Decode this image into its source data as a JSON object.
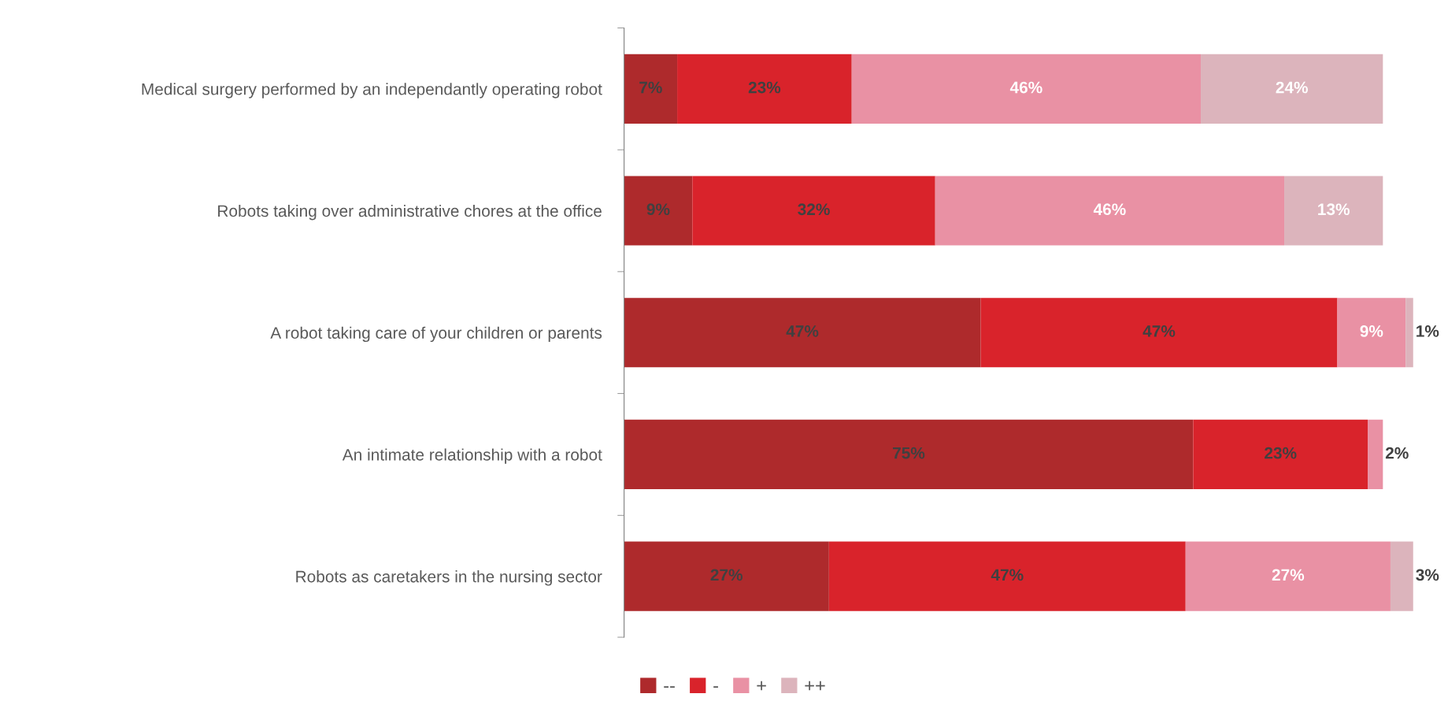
{
  "chart_data": {
    "type": "bar",
    "orientation": "horizontal",
    "stacked": true,
    "categories": [
      "Medical surgery performed by an independantly operating robot",
      "Robots taking over administrative chores at the office",
      "A robot taking care of your children or parents",
      "An intimate relationship with a robot",
      "Robots as caretakers in the nursing sector"
    ],
    "series": [
      {
        "name": "--",
        "color": "#ae2a2c",
        "values": [
          7,
          9,
          47,
          75,
          27
        ],
        "value_labels": [
          "7%",
          "9%",
          "47%",
          "75%",
          "27%"
        ]
      },
      {
        "name": "-",
        "color": "#d9232b",
        "values": [
          23,
          32,
          47,
          23,
          47
        ],
        "value_labels": [
          "23%",
          "32%",
          "47%",
          "23%",
          "47%"
        ]
      },
      {
        "name": "+",
        "color": "#e991a4",
        "values": [
          46,
          46,
          9,
          2,
          27
        ],
        "value_labels": [
          "46%",
          "46%",
          "9%",
          "2%",
          "27%"
        ]
      },
      {
        "name": "++",
        "color": "#dcb4bc",
        "values": [
          24,
          13,
          1,
          0,
          3
        ],
        "value_labels": [
          "24%",
          "13%",
          "1%",
          null,
          "3%"
        ]
      }
    ],
    "legend": "bottom",
    "grid": false
  }
}
